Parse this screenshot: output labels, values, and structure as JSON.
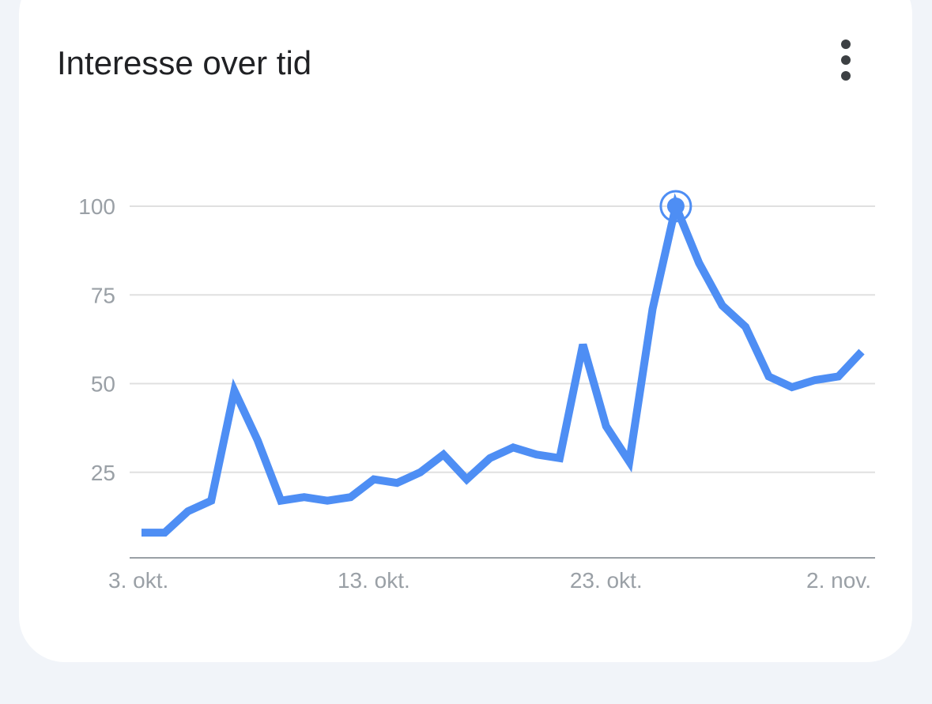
{
  "card": {
    "title": "Interesse over tid",
    "menu_icon": "more-vertical-icon"
  },
  "colors": {
    "line": "#4e8ef4",
    "grid": "#e0e0e0",
    "axis": "#9aa0a6",
    "tick_text": "#9aa0a6"
  },
  "chart_data": {
    "type": "line",
    "title": "",
    "xlabel": "",
    "ylabel": "",
    "ylim": [
      0,
      100
    ],
    "y_ticks": [
      25,
      50,
      75,
      100
    ],
    "x_tick_labels": [
      "3. okt.",
      "13. okt.",
      "23. okt.",
      "2. nov."
    ],
    "x_tick_indices": [
      0,
      10,
      20,
      30
    ],
    "highlight_index": 23,
    "grid": true,
    "legend": "none",
    "series": [
      {
        "values": [
          8,
          8,
          14,
          17,
          48,
          34,
          17,
          18,
          17,
          18,
          23,
          22,
          25,
          30,
          23,
          29,
          32,
          30,
          29,
          61,
          38,
          28,
          71,
          100,
          84,
          72,
          66,
          52,
          49,
          51,
          52,
          59
        ]
      }
    ]
  }
}
